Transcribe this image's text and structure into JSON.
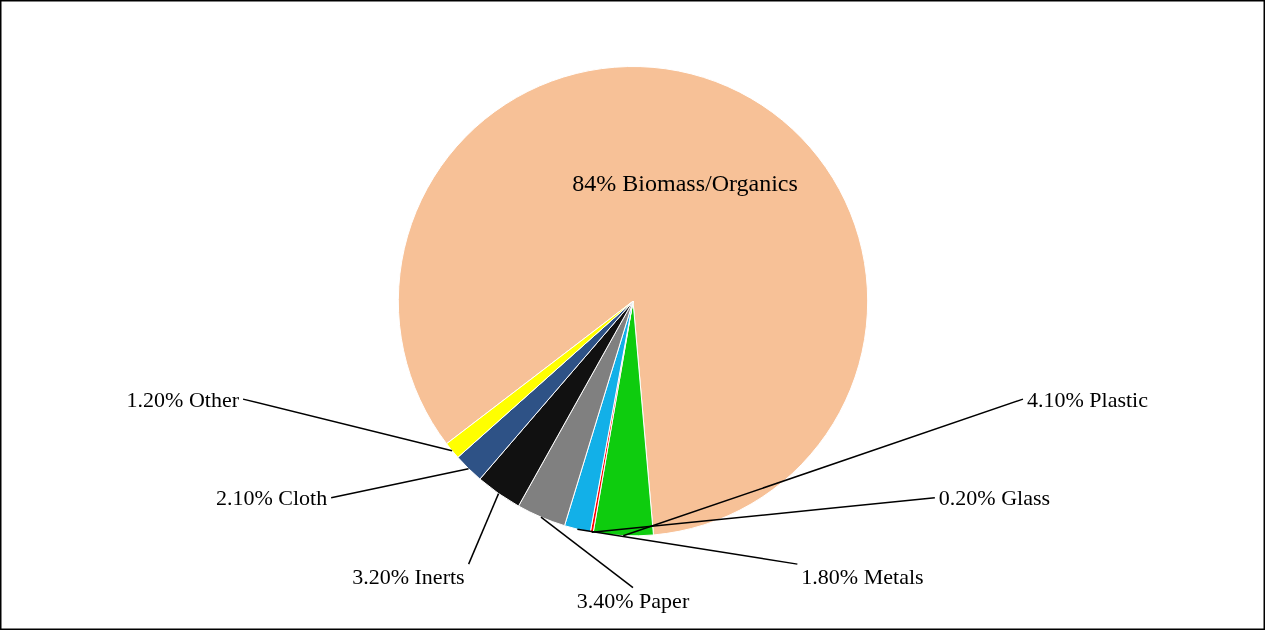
{
  "chart_data": {
    "type": "pie",
    "categories": [
      "Biomass/Organics",
      "Plastic",
      "Glass",
      "Metals",
      "Paper",
      "Inerts",
      "Cloth",
      "Other"
    ],
    "values": [
      84,
      4.1,
      0.2,
      1.8,
      3.4,
      3.2,
      2.1,
      1.2
    ],
    "value_labels": [
      "84%",
      "4.10%",
      "0.20%",
      "1.80%",
      "3.40%",
      "3.20%",
      "2.10%",
      "1.20%"
    ],
    "colors": [
      "#f7c197",
      "#0ecc0e",
      "#ff0000",
      "#12b0e8",
      "#808080",
      "#111111",
      "#2e5286",
      "#ffff00"
    ]
  }
}
